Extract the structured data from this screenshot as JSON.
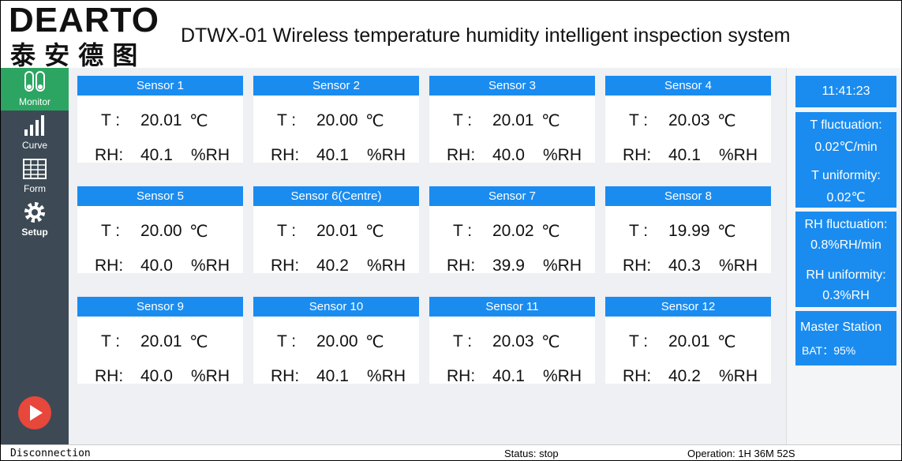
{
  "header": {
    "logo": "DEARTO",
    "logo_cn": "泰 安 德 图",
    "title": "DTWX-01 Wireless temperature humidity intelligent inspection system"
  },
  "sidebar": [
    {
      "label": "Monitor"
    },
    {
      "label": "Curve"
    },
    {
      "label": "Form"
    },
    {
      "label": "Setup"
    }
  ],
  "labels": {
    "t": "T :",
    "rh": "RH:",
    "t_unit": "℃",
    "rh_unit": "%RH"
  },
  "sensors": [
    {
      "name": "Sensor 1",
      "t": "20.01",
      "rh": "40.1"
    },
    {
      "name": "Sensor  2",
      "t": "20.00",
      "rh": "40.1"
    },
    {
      "name": "Sensor 3",
      "t": "20.01",
      "rh": "40.0"
    },
    {
      "name": "Sensor  4",
      "t": "20.03",
      "rh": "40.1"
    },
    {
      "name": "Sensor 5",
      "t": "20.00",
      "rh": "40.0"
    },
    {
      "name": "Sensor  6(Centre)",
      "t": "20.01",
      "rh": "40.2"
    },
    {
      "name": "Sensor 7",
      "t": "20.02",
      "rh": "39.9"
    },
    {
      "name": "Sensor 8",
      "t": "19.99",
      "rh": "40.3"
    },
    {
      "name": "Sensor 9",
      "t": "20.01",
      "rh": "40.0"
    },
    {
      "name": "Sensor 10",
      "t": "20.00",
      "rh": "40.1"
    },
    {
      "name": "Sensor 11",
      "t": "20.03",
      "rh": "40.1"
    },
    {
      "name": "Sensor 12",
      "t": "20.01",
      "rh": "40.2"
    }
  ],
  "side_panel": {
    "time": "11:41:23",
    "t_fluctuation_label": "T fluctuation:",
    "t_fluctuation": "0.02℃/min",
    "t_uniformity_label": "T uniformity:",
    "t_uniformity": "0.02℃",
    "rh_fluctuation_label": "RH fluctuation:",
    "rh_fluctuation": "0.8%RH/min",
    "rh_uniformity_label": "RH uniformity:",
    "rh_uniformity": "0.3%RH",
    "master_label": "Master Station",
    "battery": "BAT：95%"
  },
  "status_bar": {
    "connection": "Disconnection",
    "status": "Status: stop",
    "operation": "Operation: 1H 36M 52S"
  }
}
